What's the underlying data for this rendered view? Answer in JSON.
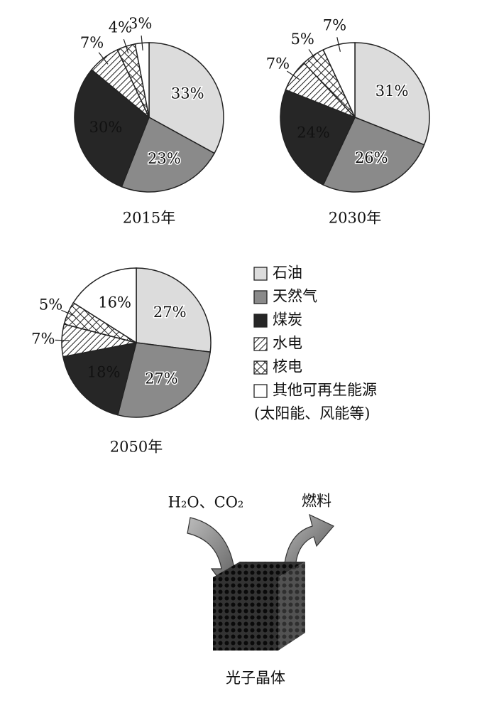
{
  "chart_data": [
    {
      "type": "pie",
      "title": "2015年",
      "values": [
        33,
        23,
        30,
        7,
        4,
        3
      ],
      "value_labels": [
        "33%",
        "23%",
        "30%",
        "7%",
        "4%",
        "3%"
      ]
    },
    {
      "type": "pie",
      "title": "2030年",
      "values": [
        31,
        26,
        24,
        7,
        5,
        7
      ],
      "value_labels": [
        "31%",
        "26%",
        "24%",
        "7%",
        "5%",
        "7%"
      ]
    },
    {
      "type": "pie",
      "title": "2050年",
      "values": [
        27,
        27,
        18,
        7,
        5,
        16
      ],
      "value_labels": [
        "27%",
        "27%",
        "18%",
        "7%",
        "5%",
        "16%"
      ]
    }
  ],
  "legend": {
    "categories": [
      "石油",
      "天然气",
      "煤炭",
      "水电",
      "核电",
      "其他可再生能源"
    ],
    "fills": [
      "#dcdcdc",
      "#8a8a8a",
      "#262626",
      "hatch",
      "crosshatch",
      "#ffffff"
    ],
    "note": "(太阳能、风能等)"
  },
  "diagram": {
    "inputs": "H₂O、CO₂",
    "output": "燃料",
    "label": "光子晶体"
  }
}
